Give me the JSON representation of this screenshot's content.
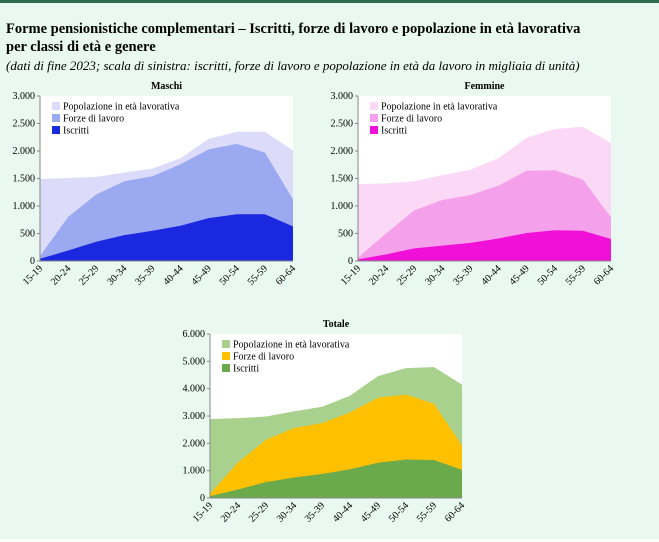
{
  "header": {
    "title_line1": "Forme pensionistiche complementari – Iscritti, forze di lavoro e popolazione in età lavorativa",
    "title_line2": "per classi di età e genere",
    "subtitle": "(dati di fine 2023; scala di sinistra: iscritti, forze di lavoro e popolazione in età da lavoro in migliaia di unità)"
  },
  "chart_data": [
    {
      "type": "area",
      "title": "Maschi",
      "legend": "upper left",
      "categories": [
        "15-19",
        "20-24",
        "25-29",
        "30-34",
        "35-39",
        "40-44",
        "45-49",
        "50-54",
        "55-59",
        "60-64"
      ],
      "ylim": [
        0,
        3000
      ],
      "yticks": [
        0,
        500,
        {
          "value": 1000,
          "label": "1.000"
        },
        {
          "value": 1500,
          "label": "1.500"
        },
        {
          "value": 2000,
          "label": "2.000"
        },
        {
          "value": 2500,
          "label": "2.500"
        },
        {
          "value": 3000,
          "label": "3.000"
        }
      ],
      "series": [
        {
          "name": "Popolazione in età lavorativa",
          "color": "#dcdcfa",
          "values": [
            1490,
            1510,
            1530,
            1610,
            1680,
            1870,
            2220,
            2350,
            2350,
            2010
          ]
        },
        {
          "name": "Forze di lavoro",
          "color": "#9ba9f0",
          "values": [
            90,
            800,
            1210,
            1450,
            1540,
            1760,
            2030,
            2130,
            1970,
            1120
          ]
        },
        {
          "name": "Iscritti",
          "color": "#1a28e0",
          "values": [
            40,
            190,
            350,
            470,
            550,
            640,
            780,
            850,
            850,
            630
          ]
        }
      ]
    },
    {
      "type": "area",
      "title": "Femmine",
      "legend": "upper left",
      "categories": [
        "15-19",
        "20-24",
        "25-29",
        "30-34",
        "35-39",
        "40-44",
        "45-49",
        "50-54",
        "55-59",
        "60-64"
      ],
      "ylim": [
        0,
        3000
      ],
      "yticks": [
        0,
        500,
        {
          "value": 1000,
          "label": "1.000"
        },
        {
          "value": 1500,
          "label": "1.500"
        },
        {
          "value": 2000,
          "label": "2.000"
        },
        {
          "value": 2500,
          "label": "2.500"
        },
        {
          "value": 3000,
          "label": "3.000"
        }
      ],
      "series": [
        {
          "name": "Popolazione in età lavorativa",
          "color": "#fbd8f5",
          "values": [
            1400,
            1410,
            1450,
            1560,
            1660,
            1870,
            2240,
            2400,
            2440,
            2140
          ]
        },
        {
          "name": "Forze di lavoro",
          "color": "#f5a0ea",
          "values": [
            60,
            500,
            920,
            1110,
            1200,
            1370,
            1640,
            1650,
            1480,
            790
          ]
        },
        {
          "name": "Iscritti",
          "color": "#f010d8",
          "values": [
            30,
            120,
            230,
            280,
            330,
            410,
            510,
            560,
            550,
            400
          ]
        }
      ]
    },
    {
      "type": "area",
      "title": "Totale",
      "legend": "upper left",
      "categories": [
        "15-19",
        "20-24",
        "25-29",
        "30-34",
        "35-39",
        "40-44",
        "45-49",
        "50-54",
        "55-59",
        "60-64"
      ],
      "ylim": [
        0,
        6000
      ],
      "yticks": [
        0,
        {
          "value": 1000,
          "label": "1.000"
        },
        {
          "value": 2000,
          "label": "2.000"
        },
        {
          "value": 3000,
          "label": "3.000"
        },
        {
          "value": 4000,
          "label": "4.000"
        },
        {
          "value": 5000,
          "label": "5.000"
        },
        {
          "value": 6000,
          "label": "6.000"
        }
      ],
      "series": [
        {
          "name": "Popolazione in età lavorativa",
          "color": "#a9d18e",
          "values": [
            2890,
            2920,
            2980,
            3170,
            3340,
            3740,
            4460,
            4750,
            4790,
            4150
          ]
        },
        {
          "name": "Forze di lavoro",
          "color": "#ffc000",
          "values": [
            150,
            1300,
            2130,
            2560,
            2740,
            3130,
            3670,
            3780,
            3450,
            1910
          ]
        },
        {
          "name": "Iscritti",
          "color": "#6aaa4a",
          "values": [
            70,
            310,
            580,
            750,
            880,
            1050,
            1290,
            1410,
            1390,
            1030
          ]
        }
      ]
    }
  ]
}
